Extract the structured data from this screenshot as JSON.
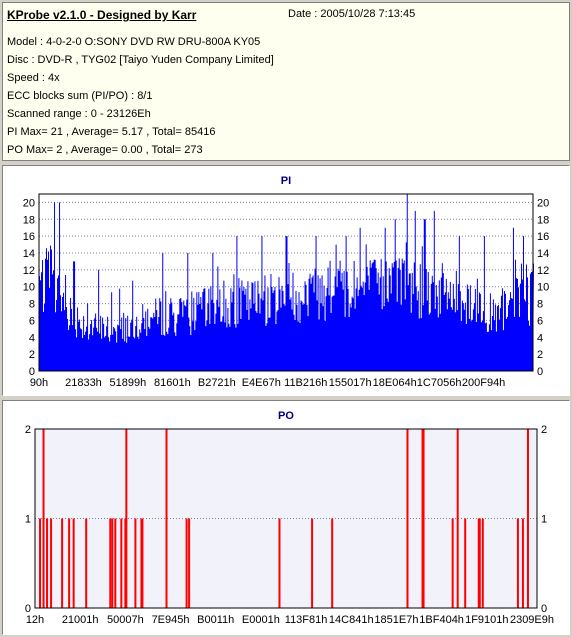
{
  "info": {
    "title": "KProbe v2.1.0 - Designed by Karr",
    "date": "Date : 2005/10/28 7:13:45",
    "lines": [
      "Model : 4-0-2-0 O:SONY     DVD RW DRU-800A  KY05",
      "Disc : DVD-R , TYG02 [Taiyo Yuden Company Limited]",
      "Speed : 4x",
      "ECC blocks sum (PI/PO) : 8/1",
      "Scanned range : 0 - 23126Eh",
      "PI Max= 21 , Average= 5.17 , Total= 85416",
      "PO Max= 2 , Average= 0.00 , Total= 273"
    ]
  },
  "colors": {
    "pi_fill": "#0000ff",
    "po_fill": "#ff0000",
    "plot_bg_pi": "#ffffff",
    "plot_bg_po": "#f2f2fb",
    "title": "#00007f",
    "grid": "#8080a0"
  },
  "chart_data": [
    {
      "type": "area",
      "title": "PI",
      "ylim": [
        0,
        21
      ],
      "yticks": [
        0,
        2,
        4,
        6,
        8,
        10,
        12,
        14,
        16,
        18,
        20
      ],
      "xlim": [
        0,
        1000
      ],
      "xtick_labels": [
        "90h",
        "21833h",
        "51899h",
        "81601h",
        "B2721h",
        "E4E67h",
        "11B216h",
        "155017h",
        "18E064h",
        "1C7056h",
        "200F94h"
      ],
      "xtick_positions": [
        0,
        90,
        180,
        270,
        360,
        450,
        540,
        630,
        720,
        810,
        900
      ],
      "profile": [
        [
          0,
          12
        ],
        [
          30,
          11
        ],
        [
          60,
          8
        ],
        [
          100,
          6
        ],
        [
          150,
          5.5
        ],
        [
          200,
          6.5
        ],
        [
          250,
          7.5
        ],
        [
          300,
          7.5
        ],
        [
          350,
          8.5
        ],
        [
          400,
          9
        ],
        [
          450,
          9.5
        ],
        [
          500,
          10
        ],
        [
          550,
          10.5
        ],
        [
          600,
          11
        ],
        [
          650,
          11
        ],
        [
          700,
          11.5
        ],
        [
          750,
          11.5
        ],
        [
          800,
          11
        ],
        [
          850,
          10
        ],
        [
          880,
          9.5
        ],
        [
          900,
          9
        ],
        [
          920,
          7
        ],
        [
          960,
          9
        ],
        [
          1000,
          10
        ]
      ],
      "spikes": [
        [
          30,
          20
        ],
        [
          40,
          20
        ],
        [
          70,
          13
        ],
        [
          120,
          12
        ],
        [
          250,
          14
        ],
        [
          300,
          14
        ],
        [
          350,
          14
        ],
        [
          400,
          16
        ],
        [
          450,
          16
        ],
        [
          500,
          16
        ],
        [
          560,
          16
        ],
        [
          600,
          15
        ],
        [
          620,
          16
        ],
        [
          650,
          17
        ],
        [
          700,
          17
        ],
        [
          720,
          18
        ],
        [
          745,
          21
        ],
        [
          760,
          19
        ],
        [
          780,
          18
        ],
        [
          800,
          19
        ],
        [
          850,
          16
        ],
        [
          900,
          16
        ],
        [
          960,
          17
        ],
        [
          980,
          16
        ]
      ]
    },
    {
      "type": "bar",
      "title": "PO",
      "ylim": [
        0,
        2
      ],
      "yticks": [
        0,
        1,
        2
      ],
      "xlim": [
        0,
        1000
      ],
      "xtick_labels": [
        "12h",
        "21001h",
        "50007h",
        "7E945h",
        "B0011h",
        "E0001h",
        "113F81h",
        "14C841h",
        "1851E7h",
        "1BF404h",
        "1F9101h",
        "2309E9h"
      ],
      "xtick_positions": [
        0,
        90,
        180,
        270,
        360,
        450,
        540,
        630,
        720,
        810,
        900,
        990
      ],
      "bars": [
        [
          8,
          1
        ],
        [
          15,
          2
        ],
        [
          22,
          1
        ],
        [
          30,
          1
        ],
        [
          52,
          1
        ],
        [
          66,
          1
        ],
        [
          75,
          1
        ],
        [
          100,
          1
        ],
        [
          148,
          1
        ],
        [
          152,
          1
        ],
        [
          158,
          1
        ],
        [
          170,
          1
        ],
        [
          178,
          1
        ],
        [
          180,
          2
        ],
        [
          198,
          1
        ],
        [
          210,
          1
        ],
        [
          212,
          1
        ],
        [
          260,
          2
        ],
        [
          300,
          1
        ],
        [
          305,
          1
        ],
        [
          485,
          1
        ],
        [
          550,
          1
        ],
        [
          590,
          1
        ],
        [
          740,
          2
        ],
        [
          770,
          2
        ],
        [
          772,
          2
        ],
        [
          830,
          1
        ],
        [
          840,
          2
        ],
        [
          855,
          1
        ],
        [
          882,
          1
        ],
        [
          884,
          1
        ],
        [
          890,
          1
        ],
        [
          960,
          1
        ],
        [
          970,
          1
        ],
        [
          980,
          2
        ]
      ]
    }
  ]
}
